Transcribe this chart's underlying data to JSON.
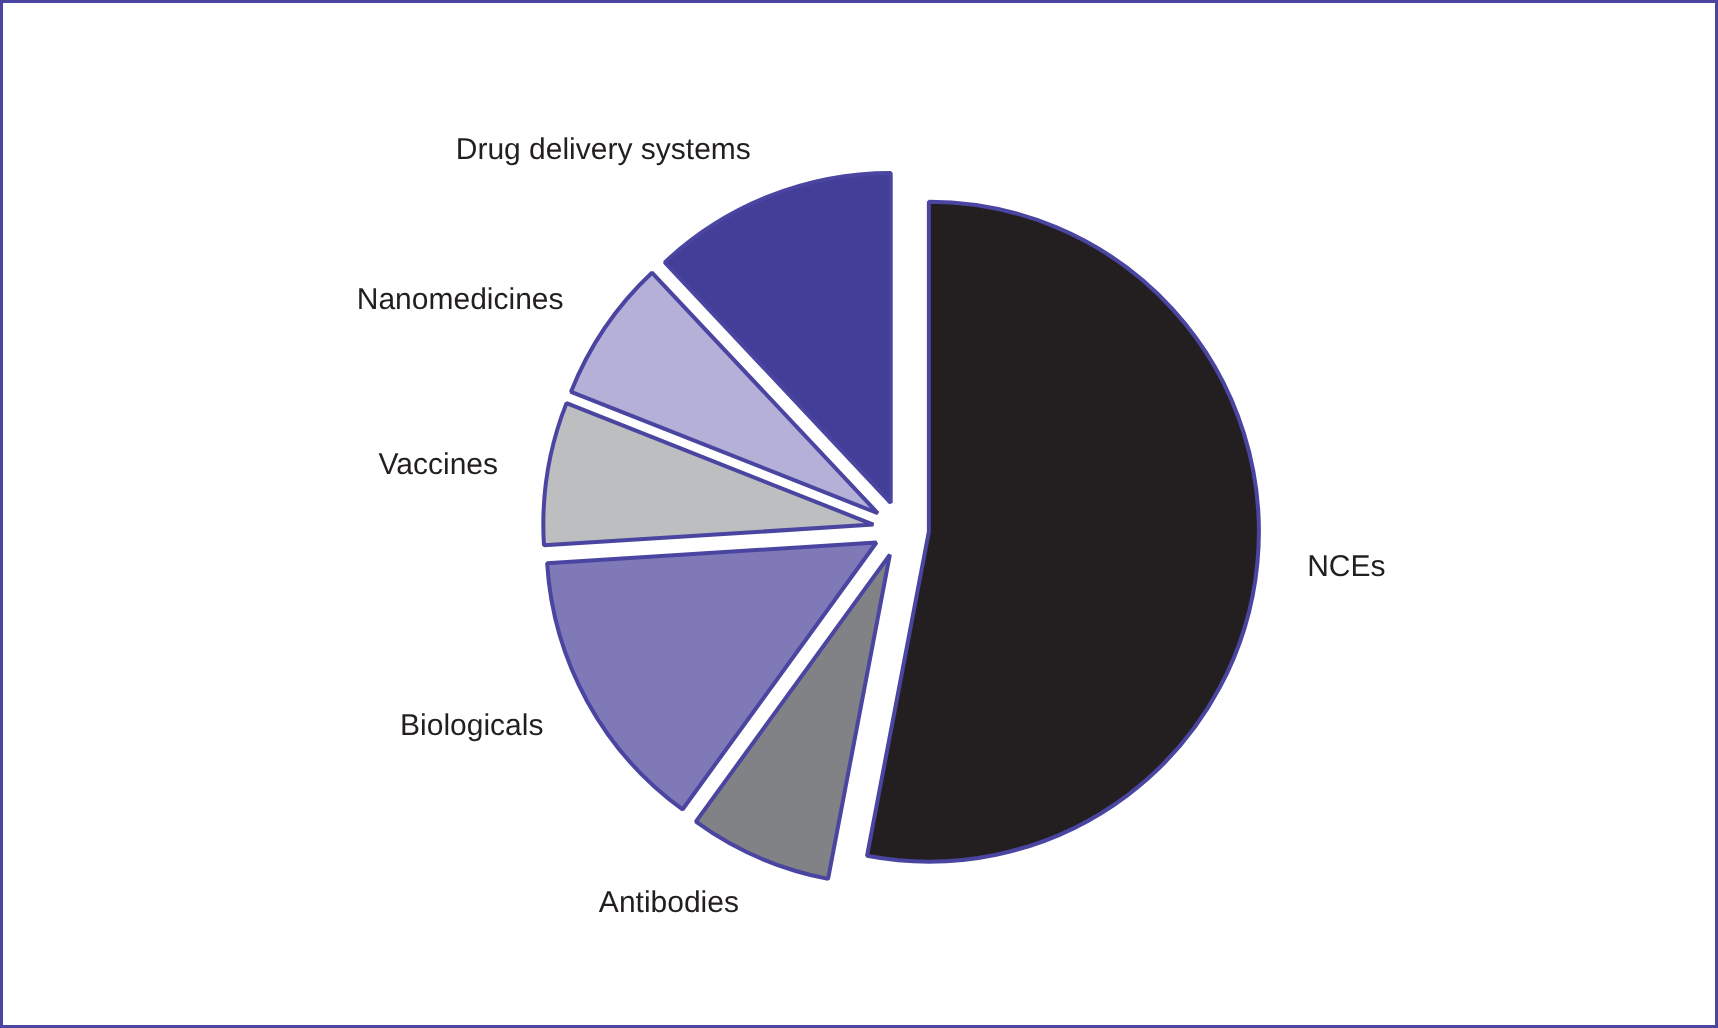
{
  "chart_data": {
    "type": "pie",
    "categories": [
      "NCEs",
      "Antibodies",
      "Biologicals",
      "Vaccines",
      "Nanomedicines",
      "Drug delivery systems"
    ],
    "values": [
      53,
      7,
      14,
      7,
      7,
      12
    ],
    "colors": [
      "#231f20",
      "#808285",
      "#8079b8",
      "#bcbec0",
      "#b4b0d8",
      "#433e98"
    ]
  }
}
